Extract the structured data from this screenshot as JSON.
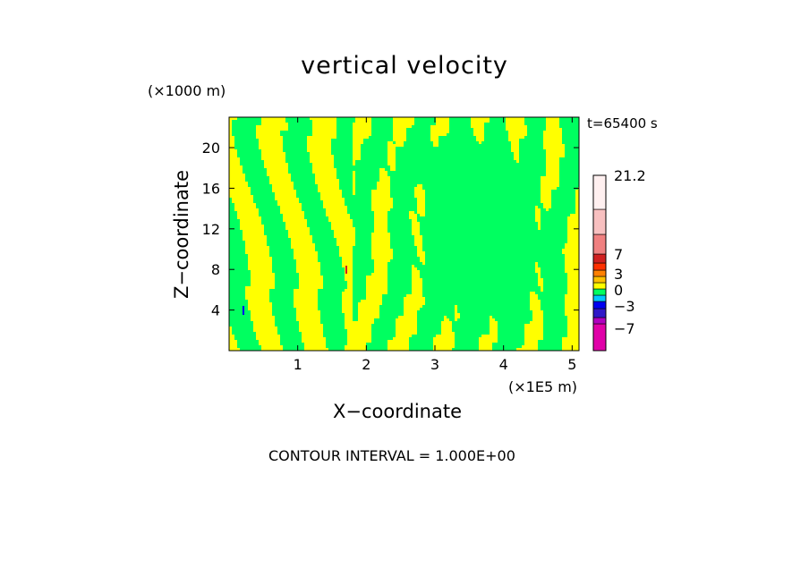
{
  "chart_data": {
    "type": "heatmap",
    "title": "vertical velocity",
    "time_label": "t=65400 s",
    "xlabel": "X−coordinate",
    "ylabel": "Z−coordinate",
    "x_unit": "(×1E5 m)",
    "y_unit": "(×1000 m)",
    "xlim": [
      0,
      5.1
    ],
    "ylim": [
      0,
      23
    ],
    "x_ticks": [
      1,
      2,
      3,
      4,
      5
    ],
    "y_ticks": [
      4,
      8,
      12,
      16,
      20
    ],
    "contour_interval_label": "CONTOUR INTERVAL = 1.000E+00",
    "colorbar": {
      "labels": [
        {
          "text": "21.2",
          "value": 21.2
        },
        {
          "text": "7",
          "value": 7
        },
        {
          "text": "3",
          "value": 3
        },
        {
          "text": "0",
          "value": 0
        },
        {
          "text": "−3",
          "value": -3
        },
        {
          "text": "−7",
          "value": -7
        }
      ],
      "colors": [
        "#e000a8",
        "#b000c0",
        "#3018c8",
        "#0000f0",
        "#00c8ff",
        "#00ff60",
        "#ffff00",
        "#ffc000",
        "#ff8000",
        "#ff3000",
        "#d02020",
        "#f08080",
        "#f8c0c0",
        "#fff0f0"
      ]
    },
    "field_colors": {
      "positive": "#ffff00",
      "negative": "#00ff60"
    },
    "grid": false
  }
}
